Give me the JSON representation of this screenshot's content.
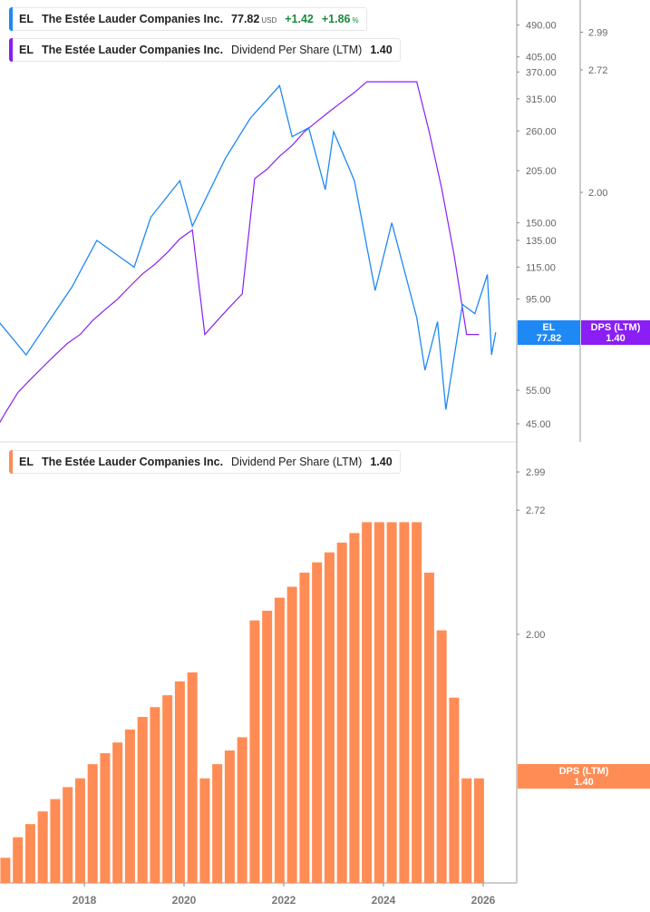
{
  "legends": {
    "price": {
      "ticker": "EL",
      "name": "The Estée Lauder Companies Inc.",
      "price": "77.82",
      "currency": "USD",
      "change": "+1.42",
      "change_pct": "+1.86",
      "pct_sign": "%",
      "color": "#1e88f5"
    },
    "dps_top": {
      "ticker": "EL",
      "name": "The Estée Lauder Companies Inc.",
      "metric": "Dividend Per Share (LTM)",
      "value": "1.40",
      "color": "#8a1ef5"
    },
    "dps_bottom": {
      "ticker": "EL",
      "name": "The Estée Lauder Companies Inc.",
      "metric": "Dividend Per Share (LTM)",
      "value": "1.40",
      "color": "#ff8c55"
    }
  },
  "tags": {
    "price": {
      "label": "EL",
      "value": "77.82"
    },
    "dps_top": {
      "label": "DPS (LTM)",
      "value": "1.40"
    },
    "dps_bottom": {
      "label": "DPS (LTM)",
      "value": "1.40"
    }
  },
  "chart_data": [
    {
      "type": "line",
      "scale": "log",
      "y_ticks": [
        "490.00",
        "405.00",
        "370.00",
        "315.00",
        "260.00",
        "205.00",
        "150.00",
        "135.00",
        "115.00",
        "95.00",
        "55.00",
        "45.00"
      ],
      "ylim": [
        45,
        490
      ],
      "series": [
        {
          "name": "EL",
          "color": "#1e88f5",
          "x": [
            "2016-04",
            "2016-11",
            "2017-10",
            "2018-04",
            "2019-01",
            "2019-05",
            "2019-12",
            "2020-03",
            "2020-11",
            "2021-05",
            "2021-12",
            "2022-03",
            "2022-07",
            "2022-11",
            "2023-01",
            "2023-06",
            "2023-11",
            "2024-03",
            "2024-09",
            "2024-11",
            "2025-02",
            "2025-04",
            "2025-08",
            "2025-11",
            "2026-02",
            "2026-03",
            "2026-04"
          ],
          "values": [
            84,
            68,
            102,
            135,
            115,
            155,
            193,
            147,
            221,
            281,
            341,
            251,
            265,
            183,
            259,
            193,
            100,
            150,
            85,
            62,
            83,
            49,
            92,
            87,
            110,
            68,
            77.82
          ]
        }
      ]
    },
    {
      "type": "line",
      "scale": "log",
      "y_ticks": [
        "2.99",
        "2.72",
        "2.00"
      ],
      "ylim": [
        1.08,
        2.99
      ],
      "series": [
        {
          "name": "DPS (LTM)",
          "color": "#8a1ef5",
          "source": "bar_values"
        }
      ]
    },
    {
      "type": "bar",
      "scale": "log",
      "x_ticks": [
        "2018",
        "2020",
        "2022",
        "2024",
        "2026"
      ],
      "y_ticks": [
        "2.99",
        "2.72",
        "2.00"
      ],
      "ylim": [
        1.08,
        2.99
      ],
      "start": "2016-04",
      "frequency": "quarterly",
      "series": [
        {
          "name": "DPS (LTM)",
          "color": "#ff8c55",
          "values": [
            1.09,
            1.15,
            1.21,
            1.25,
            1.29,
            1.33,
            1.37,
            1.4,
            1.45,
            1.49,
            1.53,
            1.58,
            1.63,
            1.67,
            1.72,
            1.78,
            1.82,
            1.4,
            1.45,
            1.5,
            1.55,
            2.07,
            2.12,
            2.19,
            2.25,
            2.33,
            2.39,
            2.45,
            2.51,
            2.57,
            2.64,
            2.64,
            2.64,
            2.64,
            2.64,
            2.33,
            2.02,
            1.71,
            1.4,
            1.4
          ]
        }
      ]
    }
  ]
}
